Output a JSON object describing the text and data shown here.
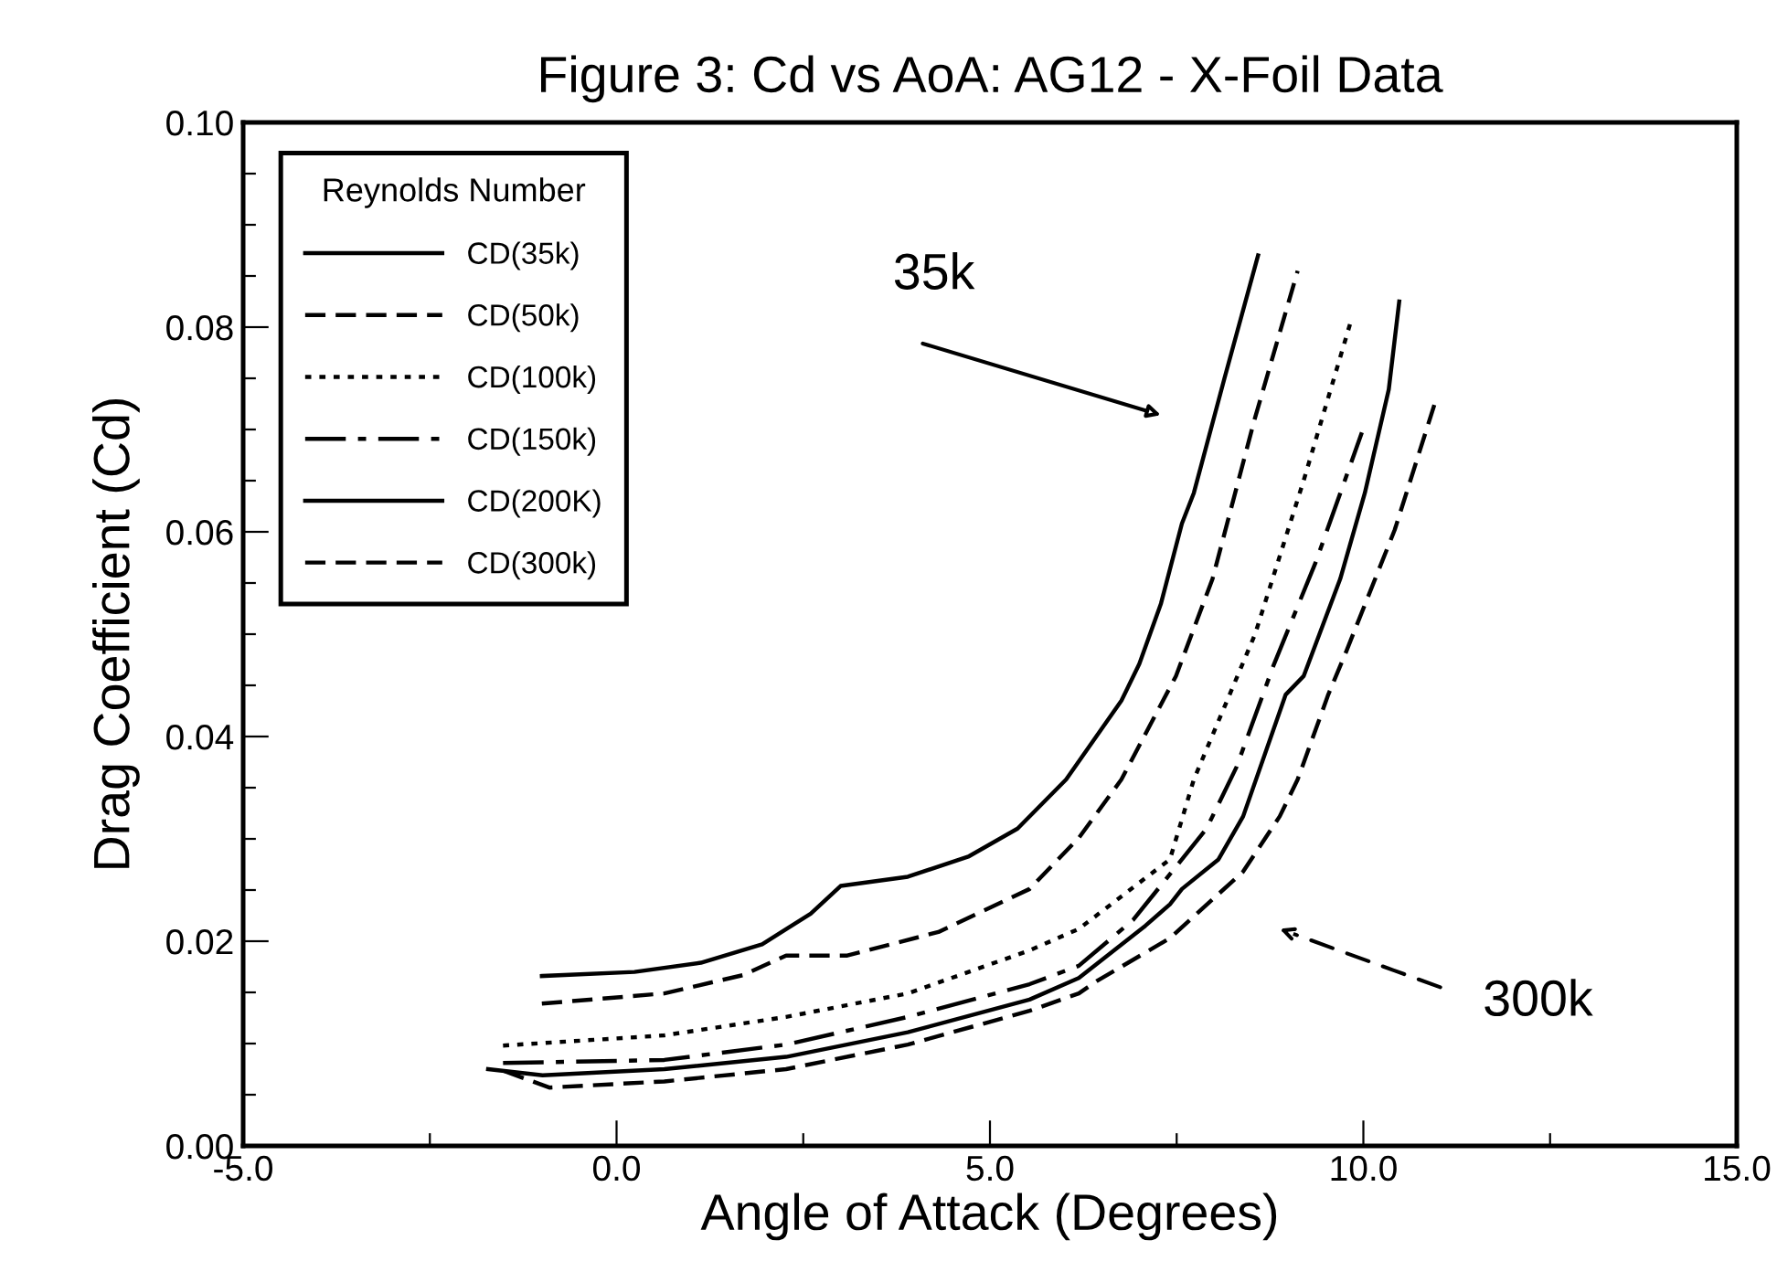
{
  "chart_data": {
    "type": "line",
    "title": "Figure 3: Cd vs AoA: AG12 - X-Foil Data",
    "xlabel": "Angle of Attack (Degrees)",
    "ylabel": "Drag Coefficient (Cd)",
    "legend_title": "Reynolds Number",
    "legend": "top left",
    "grid": false,
    "marker": "none",
    "xlim": [
      -5,
      15
    ],
    "ylim": [
      0,
      0.1
    ],
    "xticks": [
      {
        "value": -5,
        "label": "-5.0"
      },
      {
        "value": -2.5,
        "label": null
      },
      {
        "value": 0,
        "label": "0.0"
      },
      {
        "value": 2.5,
        "label": null
      },
      {
        "value": 5,
        "label": "5.0"
      },
      {
        "value": 7.5,
        "label": null
      },
      {
        "value": 10,
        "label": "10.0"
      },
      {
        "value": 12.5,
        "label": null
      },
      {
        "value": 15,
        "label": "15.0"
      }
    ],
    "yticks": [
      {
        "value": 0,
        "label": "0.00"
      },
      {
        "value": 0.005,
        "label": null
      },
      {
        "value": 0.01,
        "label": null
      },
      {
        "value": 0.015,
        "label": null
      },
      {
        "value": 0.02,
        "label": "0.02"
      },
      {
        "value": 0.025,
        "label": null
      },
      {
        "value": 0.03,
        "label": null
      },
      {
        "value": 0.035,
        "label": null
      },
      {
        "value": 0.04,
        "label": "0.04"
      },
      {
        "value": 0.045,
        "label": null
      },
      {
        "value": 0.05,
        "label": null
      },
      {
        "value": 0.055,
        "label": null
      },
      {
        "value": 0.06,
        "label": "0.06"
      },
      {
        "value": 0.065,
        "label": null
      },
      {
        "value": 0.07,
        "label": null
      },
      {
        "value": 0.075,
        "label": null
      },
      {
        "value": 0.08,
        "label": "0.08"
      },
      {
        "value": 0.085,
        "label": null
      },
      {
        "value": 0.09,
        "label": null
      },
      {
        "value": 0.095,
        "label": null
      },
      {
        "value": 0.1,
        "label": "0.10"
      }
    ],
    "series": [
      {
        "name": "CD(35k)",
        "color": "#000000",
        "line_style": "solid",
        "x": [
          -1.0,
          0.24,
          1.13,
          1.95,
          2.6,
          3.0,
          3.9,
          4.72,
          5.37,
          6.02,
          6.76,
          7.0,
          7.29,
          7.57,
          7.73,
          8.14,
          8.59
        ],
        "values": [
          0.0166,
          0.017,
          0.0179,
          0.0197,
          0.0227,
          0.0254,
          0.0263,
          0.0283,
          0.031,
          0.0358,
          0.0435,
          0.0471,
          0.053,
          0.0608,
          0.0638,
          0.075,
          0.087
        ]
      },
      {
        "name": "CD(50k)",
        "color": "#000000",
        "line_style": "dashed",
        "x": [
          -1.0,
          0.64,
          1.7,
          2.27,
          3.09,
          4.31,
          5.53,
          6.19,
          6.76,
          7.49,
          7.98,
          8.54,
          9.12
        ],
        "values": [
          0.0139,
          0.0149,
          0.0167,
          0.0186,
          0.0186,
          0.0209,
          0.0251,
          0.0301,
          0.0358,
          0.0459,
          0.0554,
          0.0709,
          0.0855
        ]
      },
      {
        "name": "CD(100k)",
        "color": "#000000",
        "line_style": "dotted",
        "x": [
          -1.52,
          0.64,
          2.27,
          3.9,
          5.53,
          6.19,
          7.41,
          7.73,
          8.55,
          9.2,
          9.85
        ],
        "values": [
          0.0098,
          0.0108,
          0.0126,
          0.0149,
          0.0191,
          0.0212,
          0.028,
          0.0358,
          0.05,
          0.065,
          0.081
        ]
      },
      {
        "name": "CD(150k)",
        "color": "#000000",
        "line_style": "dashdot",
        "x": [
          -1.52,
          0.64,
          2.27,
          3.9,
          5.53,
          6.19,
          6.92,
          7.9,
          8.3,
          8.8,
          9.36,
          9.98
        ],
        "values": [
          0.0081,
          0.0084,
          0.0099,
          0.0126,
          0.0158,
          0.0176,
          0.0221,
          0.031,
          0.037,
          0.047,
          0.057,
          0.0697
        ]
      },
      {
        "name": "CD(200K)",
        "color": "#000000",
        "line_style": "solid",
        "x": [
          -1.72,
          -0.99,
          0.64,
          2.27,
          3.9,
          5.53,
          6.19,
          7.08,
          7.41,
          7.57,
          8.06,
          8.39,
          8.96,
          9.2,
          9.69,
          10.02,
          10.34,
          10.48
        ],
        "values": [
          0.0075,
          0.0069,
          0.0075,
          0.0087,
          0.0111,
          0.0143,
          0.0164,
          0.0215,
          0.0236,
          0.0251,
          0.028,
          0.0322,
          0.0441,
          0.0459,
          0.0554,
          0.0638,
          0.0739,
          0.0825
        ]
      },
      {
        "name": "CD(300k)",
        "color": "#000000",
        "line_style": "dashed",
        "x": [
          -1.5,
          -0.9,
          0.64,
          2.27,
          3.9,
          5.53,
          6.19,
          6.43,
          7.41,
          8.39,
          8.88,
          9.12,
          9.53,
          9.77,
          10.42,
          10.95
        ],
        "values": [
          0.0073,
          0.0057,
          0.0063,
          0.0075,
          0.0099,
          0.0132,
          0.0149,
          0.0161,
          0.0203,
          0.0268,
          0.0322,
          0.0358,
          0.0441,
          0.0483,
          0.0602,
          0.0724
        ]
      }
    ],
    "annotations": [
      "35k",
      "300k"
    ]
  }
}
